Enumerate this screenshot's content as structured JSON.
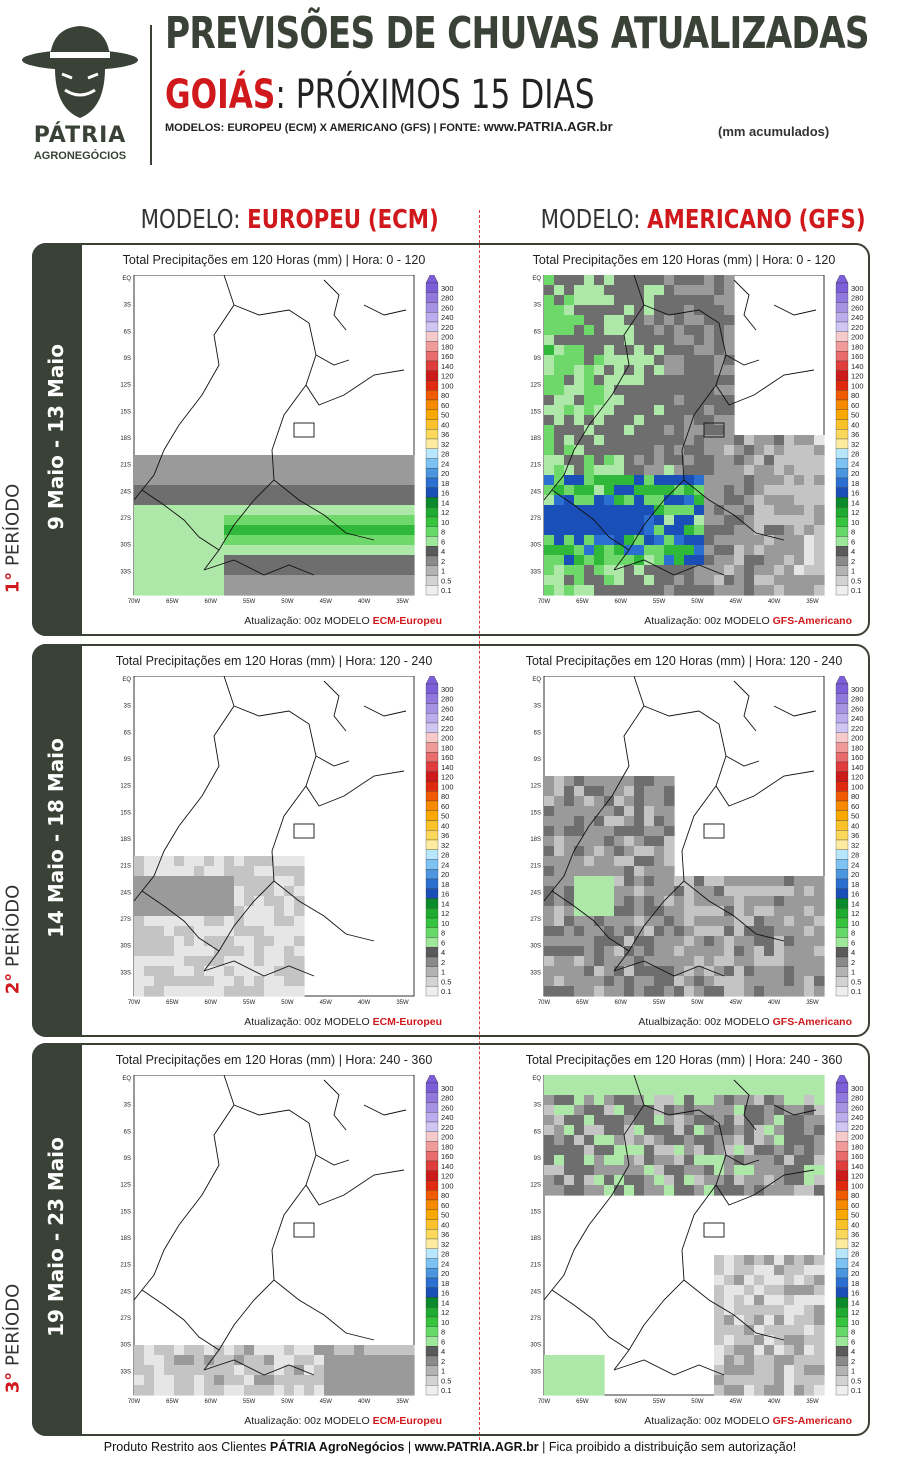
{
  "header": {
    "logo_name": "PÁTRIA",
    "logo_sub": "AGRONEGÓCIOS",
    "title": "PREVISÕES DE CHUVAS ATUALIZADAS",
    "state": "GOIÁS",
    "subtitle_rest": ": PRÓXIMOS 15 DIAS",
    "models_text": "MODELOS: EUROPEU (ECM) X AMERICANO (GFS)  |  FONTE: ",
    "site": "www.PATRIA.AGR.br",
    "units": "(mm acumulados)"
  },
  "columns": {
    "left_prefix": "MODELO: ",
    "left_name": "EUROPEU",
    "left_abbr": "(ECM)",
    "right_prefix": "MODELO: ",
    "right_name": "AMERICANO",
    "right_abbr": "(GFS)"
  },
  "periods": [
    {
      "dates": "9 Maio - 13 Maio",
      "label_num": "1°",
      "label_text": " PERÍODO",
      "ecm_title": "Total Precipitações em 120 Horas (mm)   |   Hora: 0 - 120",
      "gfs_title": "Total Precipitações em 120 Horas (mm)   |   Hora: 0 - 120",
      "ecm_foot": "Atualização: 00z MODELO ",
      "gfs_foot": "Atualização: 00z MODELO "
    },
    {
      "dates": "14 Maio - 18 Maio",
      "label_num": "2°",
      "label_text": " PERÍODO",
      "ecm_title": "Total Precipitações em 120 Horas (mm)   |   Hora: 120 - 240",
      "gfs_title": "Total Precipitações em 120 Horas (mm)   |   Hora: 120 - 240",
      "ecm_foot": "Atualização: 00z MODELO ",
      "gfs_foot": "Atualbização: 00z MODELO "
    },
    {
      "dates": "19 Maio - 23 Maio",
      "label_num": "3°",
      "label_text": " PERÍODO",
      "ecm_title": "Total Precipitações em 120 Horas (mm)   |   Hora: 240 - 360",
      "gfs_title": "Total Precipitações em 120 Horas (mm)   |   Hora: 240 - 360",
      "ecm_foot": "Atualização: 00z MODELO ",
      "gfs_foot": "Atualização: 00z MODELO "
    }
  ],
  "model_labels": {
    "ecm": "ECM-Europeu",
    "gfs": "GFS-Americano"
  },
  "legend_levels": [
    "300",
    "280",
    "260",
    "240",
    "220",
    "200",
    "180",
    "160",
    "140",
    "120",
    "100",
    "80",
    "60",
    "50",
    "40",
    "36",
    "32",
    "28",
    "24",
    "20",
    "18",
    "16",
    "14",
    "12",
    "10",
    "8",
    "6",
    "4",
    "2",
    "1",
    "0.5",
    "0.1"
  ],
  "legend_colors": [
    "#7b5ed8",
    "#9078dd",
    "#a592e3",
    "#baaced",
    "#cfc6f3",
    "#f6caca",
    "#f19a9a",
    "#ea6b6b",
    "#e03c3c",
    "#cc1a1a",
    "#e02a10",
    "#f05a00",
    "#f78a00",
    "#f9a800",
    "#fac22a",
    "#fbd85c",
    "#fdeca0",
    "#b7e6ff",
    "#7cc2f2",
    "#4c96e0",
    "#2b6fd0",
    "#1a4fb8",
    "#0a8a2a",
    "#1faa30",
    "#36c43e",
    "#66d868",
    "#9ee89c",
    "#5a5a5a",
    "#8a8a8a",
    "#b3b3b3",
    "#d3d3d3",
    "#efefef"
  ],
  "axes": {
    "lat_ticks": [
      "EQ",
      "3S",
      "6S",
      "9S",
      "12S",
      "15S",
      "18S",
      "21S",
      "24S",
      "27S",
      "30S",
      "33S"
    ],
    "lon_ticks": [
      "70W",
      "65W",
      "60W",
      "55W",
      "50W",
      "45W",
      "40W",
      "35W"
    ]
  },
  "footer": {
    "pre": "Produto Restrito aos Clientes ",
    "brand": "PÁTRIA AgroNegócios",
    "sep1": " | ",
    "site": "www.PATRIA.AGR.br",
    "post": " | Fica proibido a distribuição sem autorização!"
  }
}
